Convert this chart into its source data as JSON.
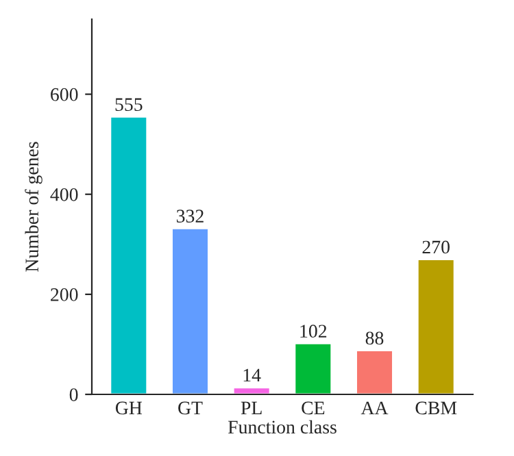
{
  "chart_data": {
    "type": "bar",
    "xlabel": "Function class",
    "ylabel": "Number of genes",
    "categories": [
      "GH",
      "GT",
      "PL",
      "CE",
      "AA",
      "CBM"
    ],
    "values": [
      555,
      332,
      14,
      102,
      88,
      270
    ],
    "colors": [
      "#00bfc4",
      "#619cff",
      "#f564e3",
      "#00ba38",
      "#f8766d",
      "#b79f00"
    ],
    "ylim": [
      0,
      750
    ],
    "yticks": [
      0,
      200,
      400,
      600
    ],
    "data_labels": true,
    "grid": false,
    "legend": false
  }
}
